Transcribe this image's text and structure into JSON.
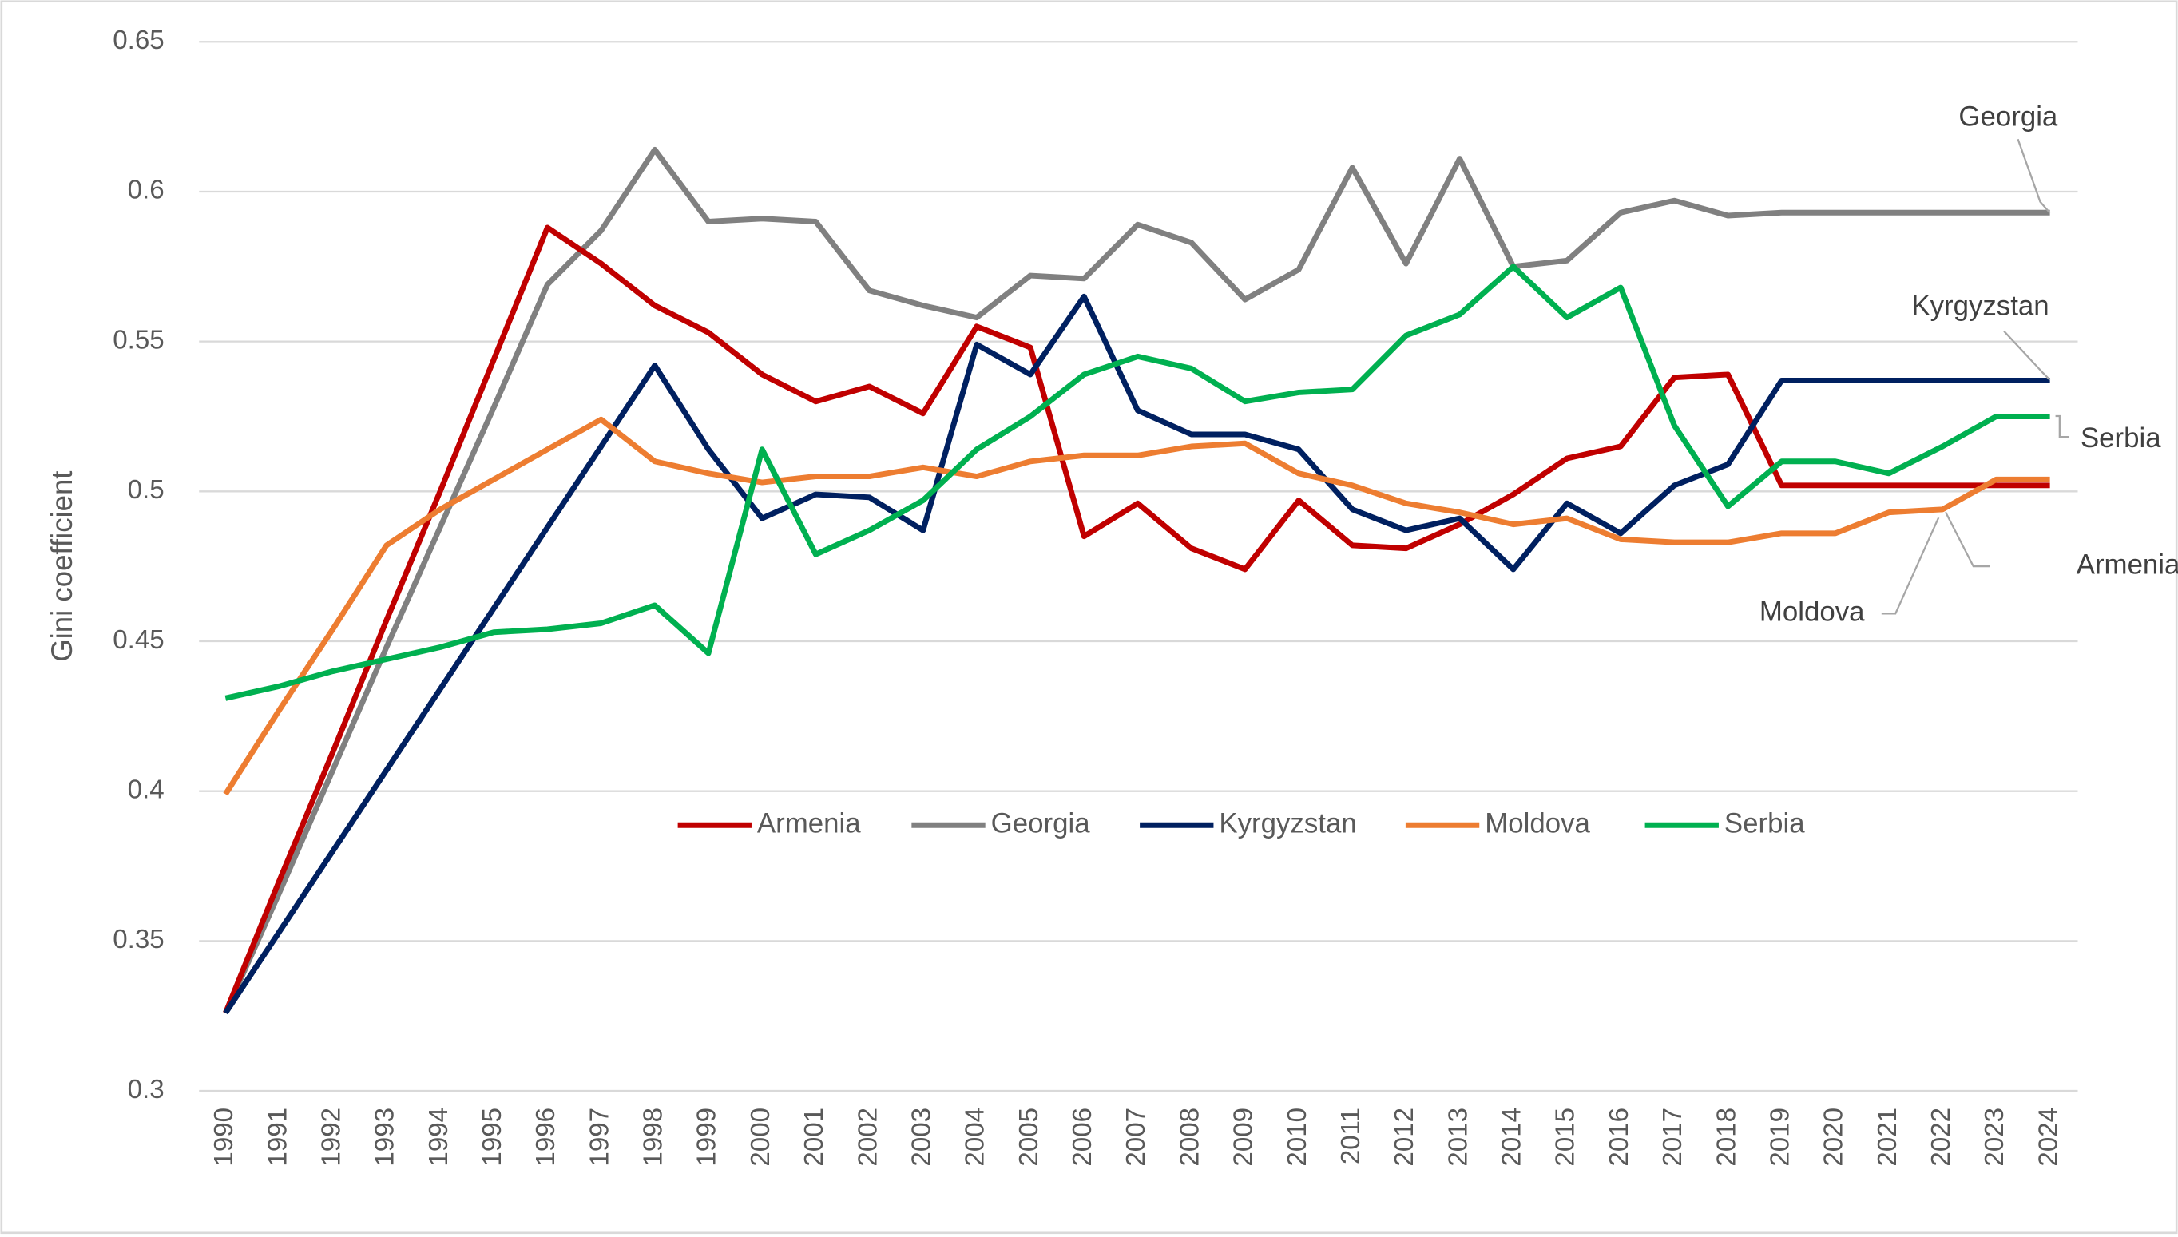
{
  "chart_data": {
    "type": "line",
    "y_label": "Gini coefficient",
    "categories": [
      "1990",
      "1991",
      "1992",
      "1993",
      "1994",
      "1995",
      "1996",
      "1997",
      "1998",
      "1999",
      "2000",
      "2001",
      "2002",
      "2003",
      "2004",
      "2005",
      "2006",
      "2007",
      "2008",
      "2009",
      "2010",
      "2011",
      "2012",
      "2013",
      "2014",
      "2015",
      "2016",
      "2017",
      "2018",
      "2019",
      "2020",
      "2021",
      "2022",
      "2023",
      "2024"
    ],
    "ylim": [
      0.3,
      0.65
    ],
    "yticks": [
      0.3,
      0.35,
      0.4,
      0.45,
      0.5,
      0.55,
      0.6,
      0.65
    ],
    "grid": true,
    "legend": "center",
    "series": [
      {
        "name": "Armenia",
        "color": "#c00000",
        "values": [
          0.326,
          0.37,
          0.413,
          0.457,
          0.5,
          0.544,
          0.588,
          0.576,
          0.562,
          0.553,
          0.539,
          0.53,
          0.535,
          0.526,
          0.555,
          0.548,
          0.485,
          0.496,
          0.481,
          0.474,
          0.497,
          0.482,
          0.481,
          0.489,
          0.499,
          0.511,
          0.515,
          0.538,
          0.539,
          0.502,
          0.502,
          0.502,
          0.502,
          0.502,
          0.502
        ]
      },
      {
        "name": "Georgia",
        "color": "#808080",
        "values": [
          0.326,
          0.366,
          0.407,
          0.448,
          0.488,
          0.528,
          0.569,
          0.587,
          0.614,
          0.59,
          0.591,
          0.59,
          0.567,
          0.562,
          0.558,
          0.572,
          0.571,
          0.589,
          0.583,
          0.564,
          0.574,
          0.608,
          0.576,
          0.611,
          0.575,
          0.577,
          0.593,
          0.597,
          0.592,
          0.593,
          0.593,
          0.593,
          0.593,
          0.593,
          0.593
        ]
      },
      {
        "name": "Kyrgyzstan",
        "color": "#002060",
        "values": [
          0.326,
          0.353,
          0.38,
          0.407,
          0.434,
          0.461,
          0.488,
          0.515,
          0.542,
          0.514,
          0.491,
          0.499,
          0.498,
          0.487,
          0.549,
          0.539,
          0.565,
          0.527,
          0.519,
          0.519,
          0.514,
          0.494,
          0.487,
          0.491,
          0.474,
          0.496,
          0.486,
          0.502,
          0.509,
          0.537,
          0.537,
          0.537,
          0.537,
          0.537,
          0.537
        ]
      },
      {
        "name": "Moldova",
        "color": "#ed7d31",
        "values": [
          0.399,
          0.427,
          0.454,
          0.482,
          0.494,
          0.504,
          0.514,
          0.524,
          0.51,
          0.506,
          0.503,
          0.505,
          0.505,
          0.508,
          0.505,
          0.51,
          0.512,
          0.512,
          0.515,
          0.516,
          0.506,
          0.502,
          0.496,
          0.493,
          0.489,
          0.491,
          0.484,
          0.483,
          0.483,
          0.486,
          0.486,
          0.493,
          0.494,
          0.504,
          0.504
        ]
      },
      {
        "name": "Serbia",
        "color": "#00b050",
        "values": [
          0.431,
          0.435,
          0.44,
          0.444,
          0.448,
          0.453,
          0.454,
          0.456,
          0.462,
          0.446,
          0.514,
          0.479,
          0.487,
          0.497,
          0.514,
          0.525,
          0.539,
          0.545,
          0.541,
          0.53,
          0.533,
          0.534,
          0.552,
          0.559,
          0.575,
          0.558,
          0.568,
          0.522,
          0.495,
          0.51,
          0.51,
          0.506,
          0.515,
          0.525,
          0.525
        ]
      }
    ]
  }
}
